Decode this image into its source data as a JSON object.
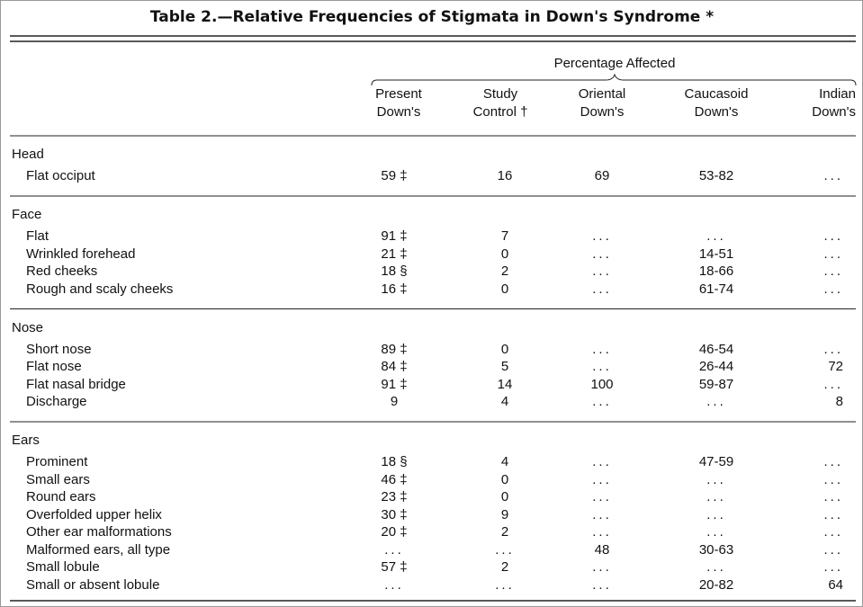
{
  "title": "Table 2.—Relative Frequencies of Stigmata in Down's Syndrome *",
  "group_header": "Percentage Affected",
  "columns": [
    [
      "Present",
      "Down's"
    ],
    [
      "Study",
      "Control †"
    ],
    [
      "Oriental",
      "Down's"
    ],
    [
      "Caucasoid",
      "Down's"
    ],
    [
      "Indian",
      "Down's"
    ]
  ],
  "sections": [
    {
      "name": "Head",
      "rows": [
        {
          "label": "Flat occiput",
          "cells": [
            "59 ‡",
            "16",
            "69",
            "53-82",
            "..."
          ]
        }
      ]
    },
    {
      "name": "Face",
      "rows": [
        {
          "label": "Flat",
          "cells": [
            "91 ‡",
            "7",
            "...",
            "...",
            "..."
          ]
        },
        {
          "label": "Wrinkled forehead",
          "cells": [
            "21 ‡",
            "0",
            "...",
            "14-51",
            "..."
          ]
        },
        {
          "label": "Red cheeks",
          "cells": [
            "18 §",
            "2",
            "...",
            "18-66",
            "..."
          ]
        },
        {
          "label": "Rough and scaly cheeks",
          "cells": [
            "16 ‡",
            "0",
            "...",
            "61-74",
            "..."
          ]
        }
      ]
    },
    {
      "name": "Nose",
      "rows": [
        {
          "label": "Short nose",
          "cells": [
            "89 ‡",
            "0",
            "...",
            "46-54",
            "..."
          ]
        },
        {
          "label": "Flat nose",
          "cells": [
            "84 ‡",
            "5",
            "...",
            "26-44",
            "72"
          ]
        },
        {
          "label": "Flat nasal bridge",
          "cells": [
            "91 ‡",
            "14",
            "100",
            "59-87",
            "..."
          ]
        },
        {
          "label": "Discharge",
          "cells": [
            "9",
            "4",
            "...",
            "...",
            "8"
          ]
        }
      ]
    },
    {
      "name": "Ears",
      "rows": [
        {
          "label": "Prominent",
          "cells": [
            "18 §",
            "4",
            "...",
            "47-59",
            "..."
          ]
        },
        {
          "label": "Small ears",
          "cells": [
            "46 ‡",
            "0",
            "...",
            "...",
            "..."
          ]
        },
        {
          "label": "Round ears",
          "cells": [
            "23 ‡",
            "0",
            "...",
            "...",
            "..."
          ]
        },
        {
          "label": "Overfolded upper helix",
          "cells": [
            "30 ‡",
            "9",
            "...",
            "...",
            "..."
          ]
        },
        {
          "label": "Other ear malformations",
          "cells": [
            "20 ‡",
            "2",
            "...",
            "...",
            "..."
          ]
        },
        {
          "label": "Malformed ears, all type",
          "cells": [
            "...",
            "...",
            "48",
            "30-63",
            "..."
          ]
        },
        {
          "label": "Small lobule",
          "cells": [
            "57 ‡",
            "2",
            "...",
            "...",
            "..."
          ]
        },
        {
          "label": "Small or absent lobule",
          "cells": [
            "...",
            "...",
            "...",
            "20-82",
            "64"
          ]
        }
      ]
    }
  ]
}
